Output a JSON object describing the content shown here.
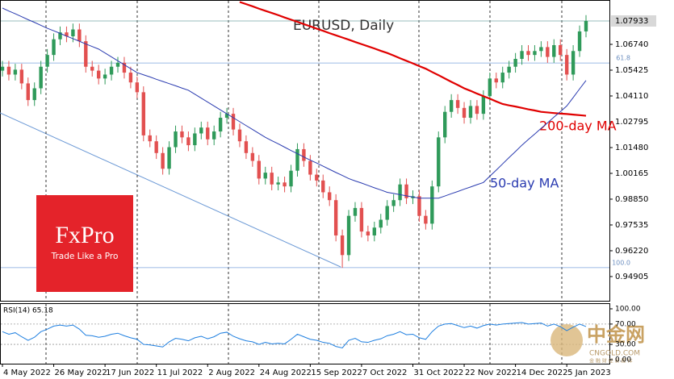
{
  "chart_data": [
    {
      "type": "candlestick",
      "title": "EURUSD, Daily",
      "categories": [
        "4 May 2022",
        null,
        null,
        null,
        null,
        null,
        null,
        null,
        "26 May 2022",
        null,
        null,
        null,
        null,
        null,
        null,
        null,
        "17 Jun 2022",
        null,
        null,
        null,
        null,
        null,
        null,
        null,
        "11 Jul 2022",
        null,
        null,
        null,
        null,
        null,
        null,
        null,
        "2 Aug 2022",
        null,
        null,
        null,
        null,
        null,
        null,
        null,
        "24 Aug 2022",
        null,
        null,
        null,
        null,
        null,
        null,
        null,
        "15 Sep 2022",
        null,
        null,
        null,
        null,
        null,
        null,
        null,
        "7 Oct 2022",
        null,
        null,
        null,
        null,
        null,
        null,
        null,
        "31 Oct 2022",
        null,
        null,
        null,
        null,
        null,
        null,
        null,
        "22 Nov 2022",
        null,
        null,
        null,
        null,
        null,
        null,
        null,
        "14 Dec 2022",
        null,
        null,
        null,
        null,
        null,
        null,
        null,
        "5 Jan 2023",
        null,
        null,
        null
      ],
      "open": [
        1.054,
        1.056,
        1.052,
        1.0545,
        1.0475,
        1.039,
        1.045,
        1.056,
        1.062,
        1.07,
        1.0735,
        1.0715,
        1.075,
        1.069,
        1.056,
        1.054,
        1.05,
        1.052,
        1.056,
        1.058,
        1.053,
        1.048,
        1.043,
        1.021,
        1.018,
        1.012,
        1.004,
        1.015,
        1.023,
        1.02,
        1.016,
        1.022,
        1.025,
        1.019,
        1.023,
        1.03,
        1.032,
        1.024,
        1.018,
        1.012,
        1.008,
        0.999,
        1.002,
        0.996,
        0.997,
        0.995,
        1.003,
        1.014,
        1.008,
        1.001,
        0.998,
        0.992,
        0.988,
        0.97,
        0.96,
        0.98,
        0.984,
        0.972,
        0.97,
        0.974,
        0.978,
        0.985,
        0.988,
        0.996,
        0.989,
        0.99,
        0.98,
        0.976,
        0.995,
        1.02,
        1.033,
        1.039,
        1.035,
        1.03,
        1.036,
        1.032,
        1.041,
        1.05,
        1.048,
        1.053,
        1.056,
        1.06,
        1.064,
        1.062,
        1.064,
        1.066,
        1.061,
        1.067,
        1.062,
        1.052,
        1.064,
        1.074
      ],
      "high": [
        1.059,
        1.059,
        1.0575,
        1.0575,
        1.0505,
        1.048,
        1.059,
        1.065,
        1.073,
        1.0765,
        1.0765,
        1.078,
        1.078,
        1.072,
        1.059,
        1.057,
        1.055,
        1.059,
        1.061,
        1.061,
        1.056,
        1.051,
        1.046,
        1.024,
        1.021,
        1.015,
        1.018,
        1.026,
        1.026,
        1.023,
        1.025,
        1.028,
        1.028,
        1.026,
        1.033,
        1.035,
        1.035,
        1.027,
        1.021,
        1.015,
        1.011,
        1.005,
        1.005,
        1.0,
        1.0,
        1.006,
        1.017,
        1.017,
        1.011,
        1.004,
        1.001,
        0.995,
        0.991,
        0.973,
        0.983,
        0.987,
        0.987,
        0.975,
        0.977,
        0.981,
        0.988,
        0.991,
        0.999,
        0.999,
        0.993,
        0.993,
        0.983,
        0.998,
        1.023,
        1.036,
        1.042,
        1.042,
        1.038,
        1.039,
        1.039,
        1.044,
        1.053,
        1.053,
        1.056,
        1.059,
        1.063,
        1.067,
        1.067,
        1.067,
        1.069,
        1.069,
        1.07,
        1.07,
        1.065,
        1.067,
        1.077,
        1.0823
      ],
      "low": [
        1.051,
        1.049,
        1.049,
        1.0445,
        1.036,
        1.036,
        1.042,
        1.053,
        1.059,
        1.067,
        1.0685,
        1.0685,
        1.066,
        1.053,
        1.051,
        1.047,
        1.047,
        1.049,
        1.053,
        1.05,
        1.045,
        1.04,
        1.018,
        1.015,
        1.009,
        1.001,
        1.001,
        1.012,
        1.017,
        1.013,
        1.013,
        1.019,
        1.016,
        1.016,
        1.02,
        1.027,
        1.021,
        1.015,
        1.009,
        1.005,
        0.996,
        0.996,
        0.993,
        0.993,
        0.992,
        0.992,
        1.0,
        1.005,
        0.998,
        0.995,
        0.989,
        0.985,
        0.967,
        0.9535,
        0.957,
        0.977,
        0.969,
        0.967,
        0.967,
        0.971,
        0.975,
        0.982,
        0.985,
        0.986,
        0.986,
        0.977,
        0.973,
        0.973,
        0.992,
        1.017,
        1.03,
        1.032,
        1.027,
        1.027,
        1.029,
        1.029,
        1.038,
        1.045,
        1.045,
        1.05,
        1.053,
        1.057,
        1.059,
        1.059,
        1.061,
        1.058,
        1.058,
        1.059,
        1.049,
        1.049,
        1.061,
        1.071
      ],
      "close": [
        1.056,
        1.052,
        1.0545,
        1.0475,
        1.039,
        1.045,
        1.056,
        1.062,
        1.07,
        1.0735,
        1.0715,
        1.075,
        1.069,
        1.056,
        1.054,
        1.05,
        1.052,
        1.056,
        1.058,
        1.053,
        1.048,
        1.043,
        1.021,
        1.018,
        1.012,
        1.004,
        1.015,
        1.023,
        1.02,
        1.016,
        1.022,
        1.025,
        1.019,
        1.023,
        1.03,
        1.032,
        1.024,
        1.018,
        1.012,
        1.008,
        0.999,
        1.002,
        0.996,
        0.997,
        0.995,
        1.003,
        1.014,
        1.008,
        1.001,
        0.998,
        0.992,
        0.988,
        0.97,
        0.96,
        0.98,
        0.984,
        0.972,
        0.97,
        0.974,
        0.978,
        0.985,
        0.988,
        0.996,
        0.989,
        0.99,
        0.98,
        0.976,
        0.995,
        1.02,
        1.033,
        1.039,
        1.035,
        1.03,
        1.036,
        1.032,
        1.041,
        1.05,
        1.048,
        1.053,
        1.056,
        1.06,
        1.064,
        1.062,
        1.064,
        1.066,
        1.061,
        1.067,
        1.062,
        1.052,
        1.064,
        1.074,
        1.07933
      ],
      "up_color": "#2f9a5a",
      "down_color": "#e25050",
      "ylim": [
        0.9367,
        1.0896
      ],
      "yticks": [
        {
          "value": 1.0674,
          "label": "1.06740"
        },
        1.05425,
        {
          "value": 1.0411,
          "label": "1.04110"
        },
        1.02795,
        {
          "value": 1.0148,
          "label": "1.01480"
        },
        1.00165,
        {
          "value": 0.9885,
          "label": "0.98850"
        },
        0.97535,
        {
          "value": 0.9622,
          "label": "0.96220"
        },
        0.94905
      ],
      "last_price": 1.07933,
      "fib_levels": [
        {
          "label": "61.8",
          "value": 1.0579
        },
        {
          "label": "100.0",
          "value": 0.9536
        }
      ],
      "series": [
        {
          "name": "200-day MA",
          "color": "#e00000",
          "values": [
            null,
            null,
            null,
            null,
            null,
            null,
            null,
            null,
            null,
            null,
            null,
            null,
            null,
            null,
            null,
            null,
            null,
            null,
            null,
            null,
            null,
            null,
            null,
            null,
            null,
            null,
            null,
            null,
            null,
            null,
            null,
            null,
            null,
            null,
            null,
            null,
            null,
            1.089,
            1.0879,
            1.0868,
            1.0856,
            1.0845,
            1.0834,
            1.0823,
            1.0811,
            1.08,
            1.0789,
            1.0777,
            1.0766,
            1.0754,
            1.0743,
            1.0731,
            1.072,
            1.0709,
            1.0698,
            1.0686,
            1.0675,
            1.0664,
            1.0653,
            1.0641,
            1.063,
            1.0617,
            1.0603,
            1.059,
            1.0577,
            1.0563,
            1.055,
            1.0533,
            1.0517,
            1.05,
            1.0483,
            1.0467,
            1.045,
            1.0437,
            1.0423,
            1.041,
            1.0397,
            1.0383,
            1.037,
            1.0363,
            1.0357,
            1.035,
            1.0343,
            1.0337,
            1.033,
            1.0327,
            1.0324,
            1.0321,
            1.0319,
            1.0316,
            1.0313,
            1.031
          ]
        },
        {
          "name": "50-day MA",
          "color": "#2a3bb0",
          "values": [
            1.0859,
            1.0844,
            1.083,
            1.0815,
            1.08,
            1.0786,
            1.0771,
            1.0756,
            1.0743,
            1.073,
            1.0716,
            1.0703,
            1.069,
            1.0676,
            1.0663,
            1.065,
            1.063,
            1.061,
            1.059,
            1.057,
            1.055,
            1.053,
            1.0519,
            1.0508,
            1.0496,
            1.0485,
            1.0474,
            1.0463,
            1.0451,
            1.044,
            1.042,
            1.04,
            1.038,
            1.036,
            1.034,
            1.032,
            1.03,
            1.028,
            1.026,
            1.024,
            1.022,
            1.02,
            1.0183,
            1.0167,
            1.015,
            1.0133,
            1.0117,
            1.01,
            1.0084,
            1.0069,
            1.0053,
            1.0037,
            1.0021,
            1.0006,
            0.999,
            0.9978,
            0.9967,
            0.9955,
            0.9943,
            0.9932,
            0.992,
            0.9914,
            0.9908,
            0.9902,
            0.9896,
            0.989,
            0.989,
            0.989,
            0.989,
            0.9901,
            0.9913,
            0.9924,
            0.9936,
            0.9947,
            0.9959,
            0.997,
            1.0002,
            1.0033,
            1.0065,
            1.0097,
            1.0128,
            1.016,
            1.0189,
            1.0217,
            1.0246,
            1.0274,
            1.0303,
            1.0331,
            1.036,
            1.0403,
            1.0447,
            1.049
          ]
        }
      ]
    },
    {
      "type": "line",
      "label": "RSI(14) 65.18",
      "color": "#1e7fe0",
      "values": [
        55,
        50,
        53,
        45,
        38,
        44,
        55,
        60,
        66,
        68,
        66,
        68,
        60,
        48,
        47,
        44,
        46,
        50,
        52,
        47,
        43,
        40,
        30,
        29,
        27,
        25,
        35,
        42,
        40,
        37,
        43,
        46,
        41,
        45,
        52,
        54,
        46,
        41,
        37,
        35,
        30,
        34,
        31,
        32,
        31,
        40,
        50,
        45,
        40,
        38,
        34,
        32,
        26,
        23,
        38,
        42,
        35,
        34,
        38,
        41,
        47,
        50,
        55,
        49,
        50,
        43,
        40,
        55,
        66,
        70,
        71,
        67,
        63,
        66,
        62,
        67,
        70,
        68,
        70,
        71,
        72,
        73,
        70,
        71,
        72,
        66,
        70,
        65,
        57,
        64,
        70,
        65.18
      ],
      "ylim": [
        -8,
        109.5
      ],
      "yticks": [
        {
          "value": 100,
          "label": "100.00"
        },
        {
          "value": 70,
          "label": "70.00"
        },
        {
          "value": 30,
          "label": "30.00"
        },
        {
          "value": 0,
          "label": "0.00"
        }
      ]
    }
  ],
  "branding": {
    "logo": "FxPro",
    "tagline": "Trade Like a Pro"
  },
  "watermark": {
    "name": "中金网",
    "site": "CNGOLD.COM",
    "slogan": "金 融 财 经 新 媒 体"
  }
}
